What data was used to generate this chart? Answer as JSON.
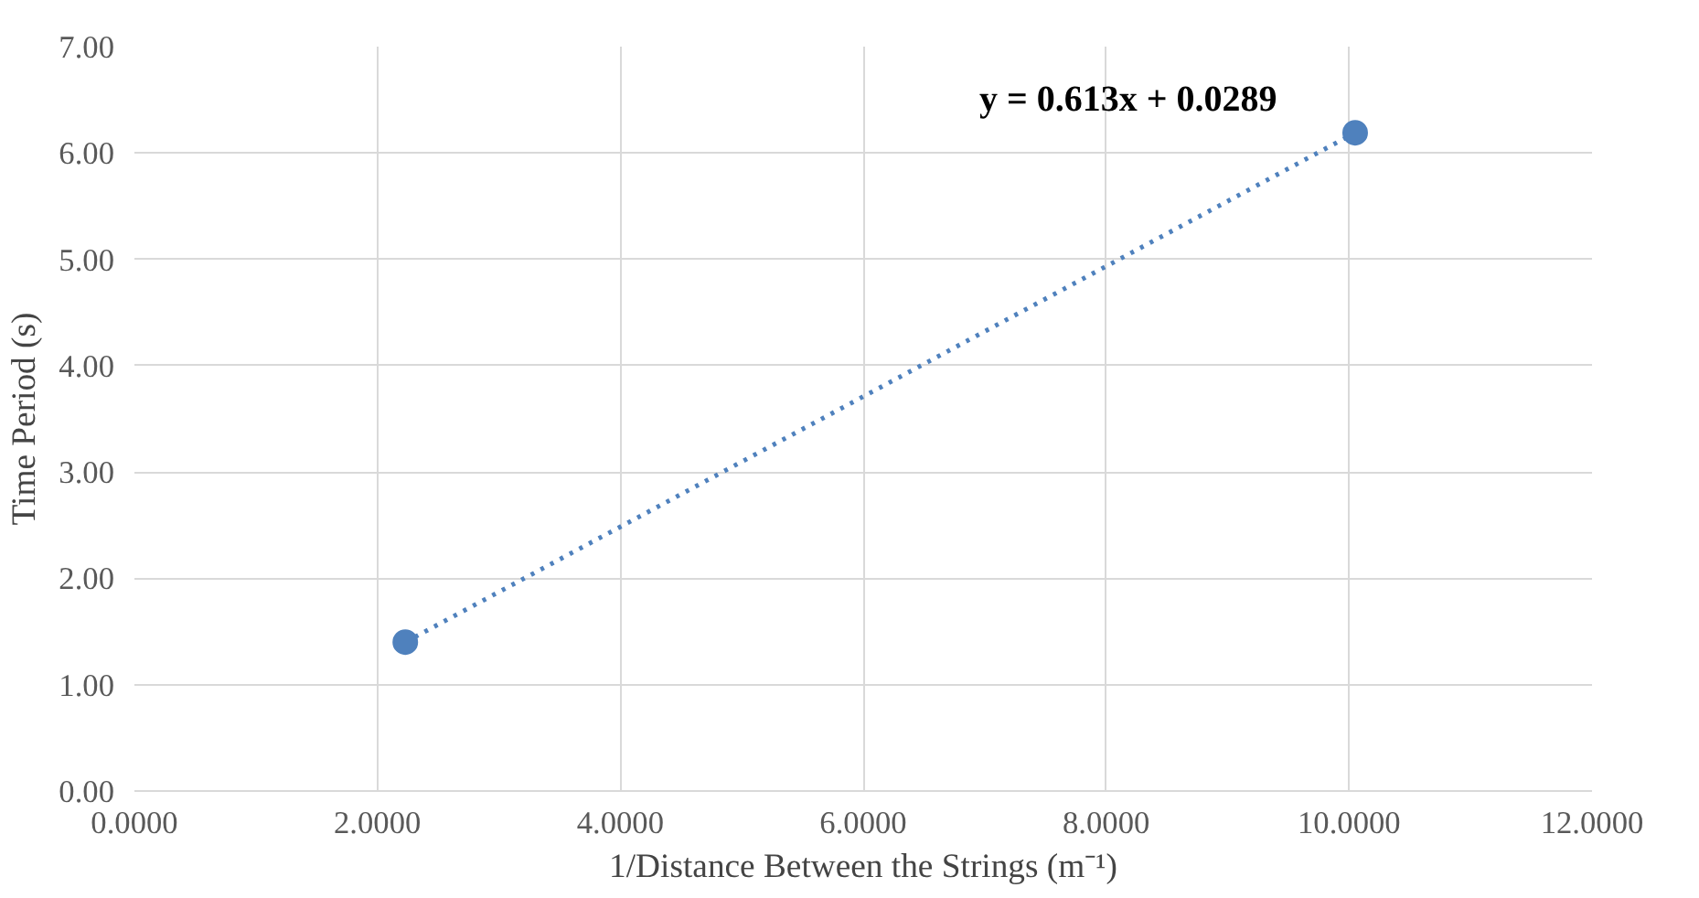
{
  "chart_data": {
    "type": "scatter",
    "xlabel": "1/Distance Between the Strings (m⁻¹)",
    "ylabel": "Time Period (s)",
    "x": [
      2.23,
      10.05
    ],
    "series": [
      {
        "color": "#4f81bd",
        "values": [
          1.4,
          6.19
        ],
        "marker": "circle"
      },
      {
        "type": "line",
        "color": "#4f81bd",
        "x": [
          2.23,
          10.05
        ],
        "values": [
          1.4,
          6.19
        ],
        "line_style": "dotted"
      }
    ],
    "annotations": [
      "y = 0.613x + 0.0289"
    ],
    "xlim": [
      0,
      12
    ],
    "xticks": [
      {
        "value": 0,
        "label": "0.0000"
      },
      {
        "value": 2,
        "label": "2.0000"
      },
      {
        "value": 4,
        "label": "4.0000"
      },
      {
        "value": 6,
        "label": "6.0000"
      },
      {
        "value": 8,
        "label": "8.0000"
      },
      {
        "value": 10,
        "label": "10.0000"
      },
      {
        "value": 12,
        "label": "12.0000"
      }
    ],
    "ylim": [
      0,
      7
    ],
    "yticks": [
      {
        "value": 0,
        "label": "0.00"
      },
      {
        "value": 1,
        "label": "1.00"
      },
      {
        "value": 2,
        "label": "2.00"
      },
      {
        "value": 3,
        "label": "3.00"
      },
      {
        "value": 4,
        "label": "4.00"
      },
      {
        "value": 5,
        "label": "5.00"
      },
      {
        "value": 6,
        "label": "6.00"
      },
      {
        "value": 7,
        "label": "7.00"
      }
    ],
    "grid": true
  }
}
